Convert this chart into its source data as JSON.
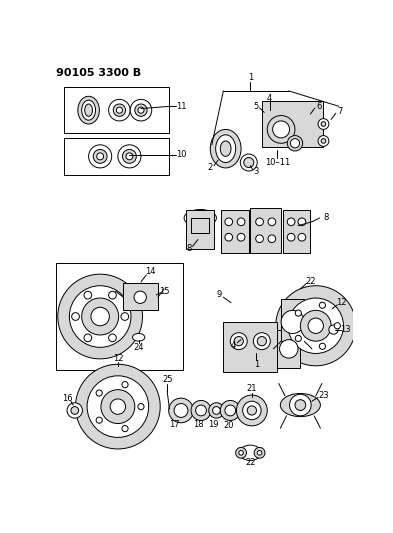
{
  "title": "90105 3300 B",
  "bg": "#ffffff",
  "figsize": [
    3.93,
    5.33
  ],
  "dpi": 100,
  "lw": 0.7,
  "label_fs": 6.0
}
